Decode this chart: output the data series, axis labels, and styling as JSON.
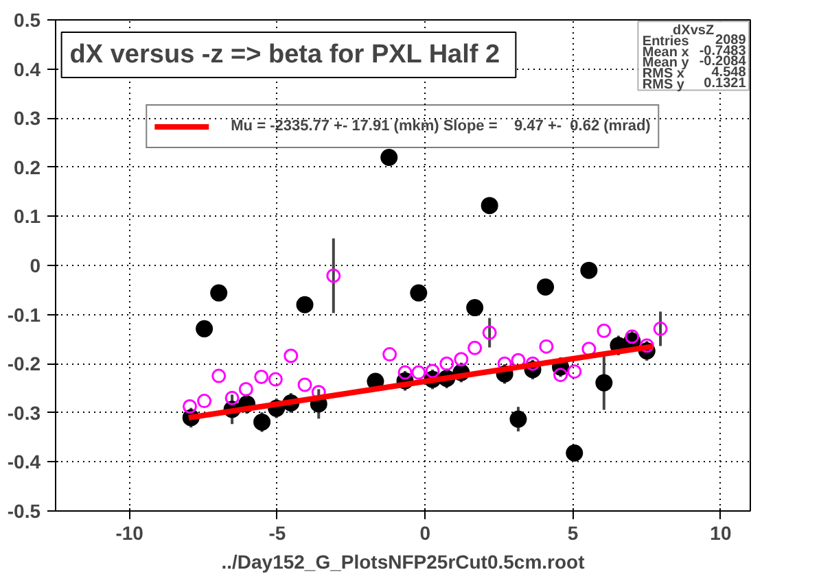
{
  "chart_data": {
    "type": "scatter",
    "title": "dX versus -z  => beta for PXL Half 2",
    "xlabel": "../Day152_G_PlotsNFP25rCut0.5cm.root",
    "xlim": [
      -12.5,
      11
    ],
    "ylim": [
      -0.5,
      0.5
    ],
    "xticks": [
      -10,
      -5,
      0,
      5,
      10
    ],
    "yticks": [
      -0.5,
      -0.4,
      -0.3,
      -0.2,
      -0.1,
      0,
      0.1,
      0.2,
      0.3,
      0.4,
      0.5
    ],
    "grid": true,
    "legend": "top",
    "series": [
      {
        "color": "#ff00ff",
        "marker": "circle",
        "x": [
          -7.96,
          -7.47,
          -6.98,
          -6.53,
          -6.06,
          -5.54,
          -5.06,
          -4.54,
          -4.07,
          -3.6,
          -3.1,
          -1.2,
          -0.68,
          -0.22,
          0.25,
          0.73,
          1.22,
          1.68,
          2.18,
          2.69,
          3.15,
          3.64,
          4.1,
          4.58,
          5.05,
          5.54,
          6.05,
          7.0,
          7.5,
          7.96
        ],
        "values": [
          -0.287,
          -0.276,
          -0.225,
          -0.27,
          -0.252,
          -0.227,
          -0.232,
          -0.184,
          -0.243,
          -0.258,
          -0.021,
          -0.181,
          -0.218,
          -0.218,
          -0.215,
          -0.2,
          -0.191,
          -0.168,
          -0.137,
          -0.2,
          -0.193,
          -0.2,
          -0.165,
          -0.223,
          -0.216,
          -0.17,
          -0.133,
          -0.145,
          -0.163,
          -0.129
        ],
        "errors": [
          null,
          null,
          null,
          null,
          null,
          null,
          null,
          null,
          null,
          null,
          0.076,
          null,
          null,
          null,
          null,
          null,
          null,
          null,
          0.03,
          null,
          null,
          null,
          null,
          null,
          null,
          null,
          null,
          null,
          null,
          0.035
        ]
      },
      {
        "color": "#000000",
        "marker": "circle",
        "x": [
          -7.92,
          -7.47,
          -6.98,
          -6.53,
          -6.03,
          -5.52,
          -5.03,
          -4.54,
          -4.07,
          -3.6,
          -1.68,
          -1.22,
          -0.68,
          -0.22,
          0.25,
          0.73,
          1.22,
          1.68,
          2.18,
          2.69,
          3.15,
          3.64,
          4.07,
          4.58,
          5.05,
          5.54,
          6.05,
          6.54,
          7.0,
          7.5
        ],
        "values": [
          -0.31,
          -0.129,
          -0.056,
          -0.293,
          -0.282,
          -0.319,
          -0.291,
          -0.28,
          -0.08,
          -0.282,
          -0.236,
          0.22,
          -0.235,
          -0.056,
          -0.232,
          -0.23,
          -0.218,
          -0.086,
          0.122,
          -0.221,
          -0.313,
          -0.212,
          -0.044,
          -0.207,
          -0.382,
          -0.01,
          -0.239,
          -0.163,
          -0.154,
          -0.174
        ],
        "errors": [
          0.02,
          null,
          null,
          0.03,
          0.02,
          0.02,
          0.02,
          0.02,
          null,
          0.03,
          null,
          null,
          0.02,
          null,
          0.02,
          0.02,
          0.02,
          null,
          null,
          0.02,
          0.025,
          0.02,
          null,
          0.02,
          null,
          null,
          0.055,
          0.02,
          0.02,
          0.02
        ]
      },
      {
        "type": "line",
        "name": "Mu = -2335.77 +- 17.91 (mkm) Slope =    9.47 +-  0.62 (mrad)",
        "color": "#ff0000",
        "x": [
          -8,
          7.7
        ],
        "values": [
          -0.31,
          -0.165
        ]
      }
    ],
    "annotations": [
      "dXvsZ",
      "Entries 2089",
      "Mean x -0.7483",
      "Mean y -0.2084",
      "RMS x 4.548",
      "RMS y 0.1321"
    ]
  }
}
